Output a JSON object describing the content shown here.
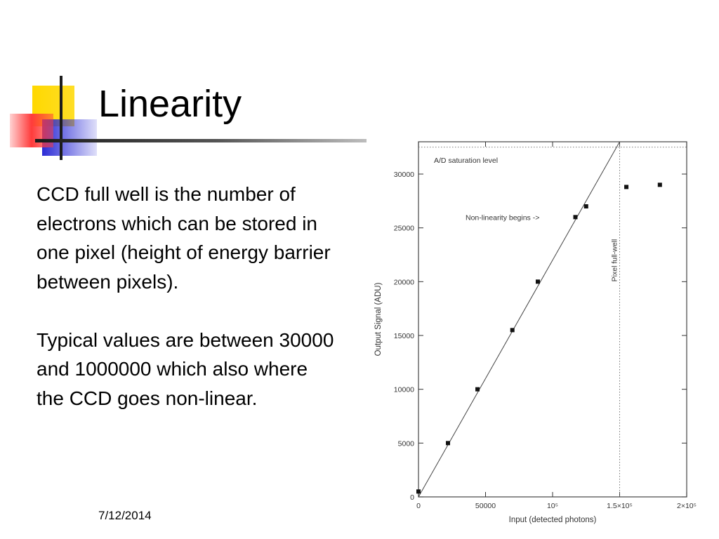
{
  "slide": {
    "title": "Linearity",
    "paragraphs": [
      "CCD full well is the number of electrons which can be stored in one pixel (height of energy barrier between pixels).",
      "Typical values are between 30000 and 1000000 which also where the CCD goes non-linear."
    ],
    "date": "7/12/2014"
  },
  "colors": {
    "accent_yellow": "#FFD800",
    "accent_blue": "#2B2BD6",
    "accent_red": "#FF3B3B"
  },
  "chart_data": {
    "type": "scatter",
    "xlabel": "Input (detected photons)",
    "ylabel": "Output Signal (ADU)",
    "xlim": [
      0,
      200000
    ],
    "ylim": [
      0,
      33000
    ],
    "x_ticks": [
      {
        "value": 0,
        "label": "0"
      },
      {
        "value": 50000,
        "label": "50000"
      },
      {
        "value": 100000,
        "label": "10⁵"
      },
      {
        "value": 150000,
        "label": "1.5×10⁵"
      },
      {
        "value": 200000,
        "label": "2×10⁵"
      }
    ],
    "y_ticks": [
      {
        "value": 0,
        "label": "0"
      },
      {
        "value": 5000,
        "label": "5000"
      },
      {
        "value": 10000,
        "label": "10000"
      },
      {
        "value": 15000,
        "label": "15000"
      },
      {
        "value": 20000,
        "label": "20000"
      },
      {
        "value": 25000,
        "label": "25000"
      },
      {
        "value": 30000,
        "label": "30000"
      }
    ],
    "points": [
      {
        "x": 0,
        "y": 500
      },
      {
        "x": 22000,
        "y": 5000
      },
      {
        "x": 44000,
        "y": 10000
      },
      {
        "x": 70000,
        "y": 15500
      },
      {
        "x": 89000,
        "y": 20000
      },
      {
        "x": 117000,
        "y": 26000
      },
      {
        "x": 125000,
        "y": 27000
      },
      {
        "x": 155000,
        "y": 28800
      },
      {
        "x": 180000,
        "y": 29000
      }
    ],
    "fit_line": {
      "x": [
        0,
        150000
      ],
      "y": [
        0,
        33000
      ]
    },
    "saturation_level": 32500,
    "full_well_x": 150000,
    "annotations": {
      "saturation": "A/D saturation level",
      "nonlinearity": "Non-linearity begins ->",
      "full_well": "Pixel full-well"
    }
  }
}
